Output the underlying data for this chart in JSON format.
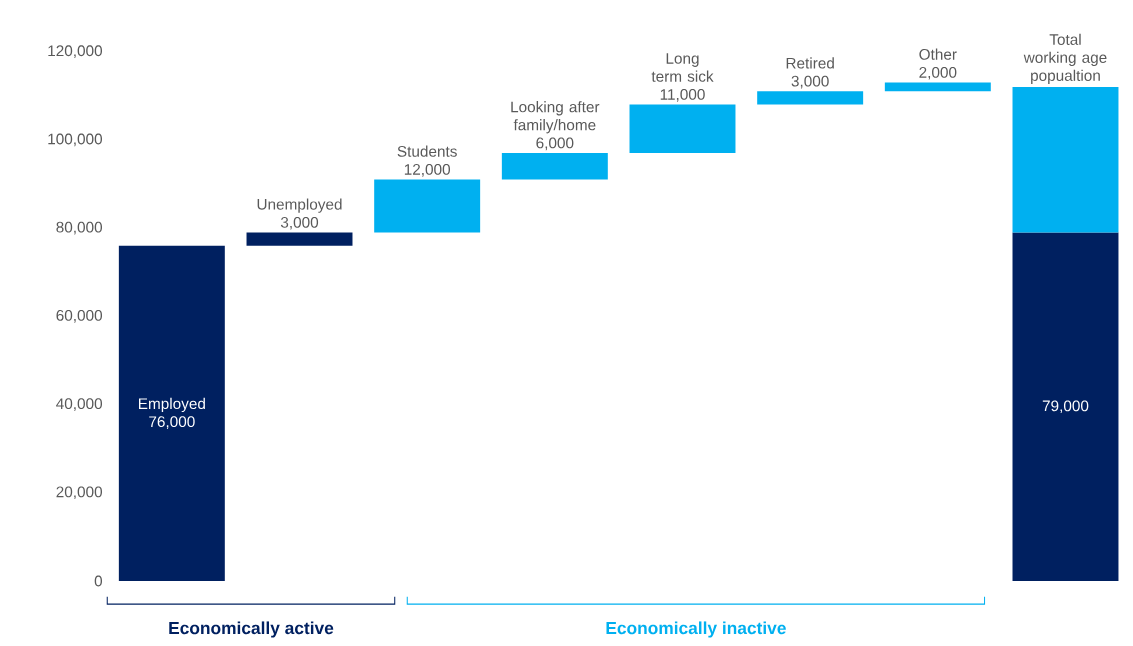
{
  "chart_data": {
    "type": "bar",
    "categories": [
      "Employed",
      "Unemployed",
      "Students",
      "Looking after family/home",
      "Long term sick",
      "Retired",
      "Other",
      "Total working age popualtion"
    ],
    "series": [
      {
        "color": "#002060",
        "values": [
          76000,
          3000,
          null,
          null,
          null,
          null,
          null,
          79000
        ],
        "base": [
          0,
          76000,
          null,
          null,
          null,
          null,
          null,
          0
        ],
        "value_labels": [
          "76,000",
          "3,000",
          null,
          null,
          null,
          null,
          null,
          "79,000"
        ]
      },
      {
        "color": "#00b0f0",
        "values": [
          null,
          null,
          12000,
          6000,
          11000,
          3000,
          2000,
          33000
        ],
        "base": [
          null,
          null,
          79000,
          91000,
          97000,
          108000,
          111000,
          79000
        ],
        "value_labels": [
          null,
          null,
          "12,000",
          "6,000",
          "11,000",
          "3,000",
          "2,000",
          null
        ]
      }
    ],
    "ylim": [
      0,
      120000
    ],
    "yticks": [
      {
        "value": 0,
        "label": "0"
      },
      {
        "value": 20000,
        "label": "20,000"
      },
      {
        "value": 40000,
        "label": "40,000"
      },
      {
        "value": 60000,
        "label": "60,000"
      },
      {
        "value": 80000,
        "label": "80,000"
      },
      {
        "value": 100000,
        "label": "100,000"
      },
      {
        "value": 120000,
        "label": "120,000"
      }
    ],
    "tick_labels": "y",
    "annotations": [
      "Economically active",
      "Economically inactive"
    ]
  }
}
